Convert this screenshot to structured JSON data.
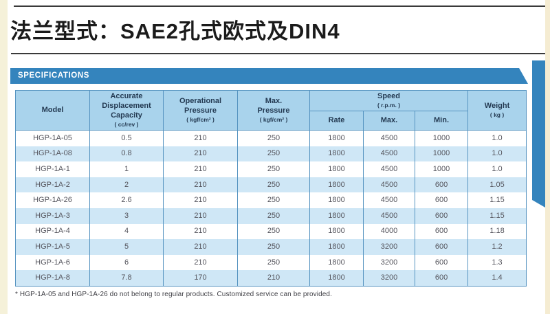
{
  "page": {
    "title": "法兰型式：SAE2孔式欧式及DIN4"
  },
  "colors": {
    "banner_blue": "#3484bd",
    "header_bg": "#a9d3ec",
    "row_stripe": "#cfe7f6",
    "table_border": "#5593c0",
    "page_edge": "#f5f1d9"
  },
  "specifications": {
    "banner_label": "SPECIFICATIONS",
    "table": {
      "headers": {
        "model": {
          "title": "Model",
          "unit": ""
        },
        "displacement": {
          "title": "Accurate\nDisplacement\nCapacity",
          "unit": "( cc/rev )"
        },
        "operational": {
          "title": "Operational\nPressure",
          "unit": "( kgf/cm² )"
        },
        "max_pressure": {
          "title": "Max.\nPressure",
          "unit": "( kgf/cm² )"
        },
        "speed": {
          "title": "Speed",
          "unit": "( r.p.m. )"
        },
        "rate": {
          "title": "Rate",
          "unit": ""
        },
        "max": {
          "title": "Max.",
          "unit": ""
        },
        "min": {
          "title": "Min.",
          "unit": ""
        },
        "weight": {
          "title": "Weight",
          "unit": "( kg )"
        }
      },
      "rows": [
        [
          "HGP-1A-05",
          "0.5",
          "210",
          "250",
          "1800",
          "4500",
          "1000",
          "1.0"
        ],
        [
          "HGP-1A-08",
          "0.8",
          "210",
          "250",
          "1800",
          "4500",
          "1000",
          "1.0"
        ],
        [
          "HGP-1A-1",
          "1",
          "210",
          "250",
          "1800",
          "4500",
          "1000",
          "1.0"
        ],
        [
          "HGP-1A-2",
          "2",
          "210",
          "250",
          "1800",
          "4500",
          "600",
          "1.05"
        ],
        [
          "HGP-1A-26",
          "2.6",
          "210",
          "250",
          "1800",
          "4500",
          "600",
          "1.15"
        ],
        [
          "HGP-1A-3",
          "3",
          "210",
          "250",
          "1800",
          "4500",
          "600",
          "1.15"
        ],
        [
          "HGP-1A-4",
          "4",
          "210",
          "250",
          "1800",
          "4000",
          "600",
          "1.18"
        ],
        [
          "HGP-1A-5",
          "5",
          "210",
          "250",
          "1800",
          "3200",
          "600",
          "1.2"
        ],
        [
          "HGP-1A-6",
          "6",
          "210",
          "250",
          "1800",
          "3200",
          "600",
          "1.3"
        ],
        [
          "HGP-1A-8",
          "7.8",
          "170",
          "210",
          "1800",
          "3200",
          "600",
          "1.4"
        ]
      ],
      "footnote": "* HGP-1A-05 and HGP-1A-26 do not belong to regular products. Customized service can be provided."
    }
  }
}
